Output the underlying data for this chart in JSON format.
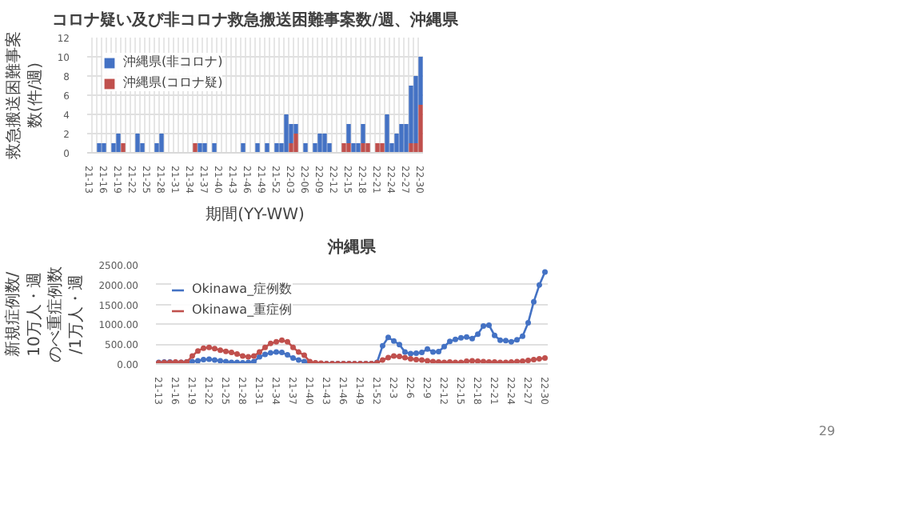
{
  "chart_data": [
    {
      "type": "bar",
      "title": "コロナ疑い及び非コロナ救急搬送困難事案数/週、沖縄県",
      "xlabel": "期間(YY-WW)",
      "ylabel": "救急搬送困難事案数(件/週)",
      "stacked": true,
      "categories": [
        "21-13",
        null,
        null,
        "21-16",
        null,
        null,
        "21-19",
        null,
        null,
        "21-22",
        null,
        null,
        "21-25",
        null,
        null,
        "21-28",
        null,
        null,
        "21-31",
        null,
        null,
        "21-34",
        null,
        null,
        "21-37",
        null,
        null,
        "21-40",
        null,
        null,
        "21-43",
        null,
        null,
        "21-46",
        null,
        null,
        "21-49",
        null,
        null,
        "21-52",
        null,
        null,
        "22-03",
        null,
        null,
        "22-06",
        null,
        null,
        "22-09",
        null,
        null,
        "22-12",
        null,
        null,
        "22-15",
        null,
        null,
        "22-18",
        null,
        null,
        "22-21",
        null,
        null,
        "22-24",
        null,
        null,
        "22-27",
        null,
        null,
        "22-30"
      ],
      "series": [
        {
          "name": "沖縄県(コロナ疑)",
          "color": "#c0504d",
          "values": [
            0,
            0,
            0,
            0,
            0,
            0,
            0,
            1,
            0,
            0,
            0,
            0,
            0,
            0,
            0,
            0,
            0,
            0,
            0,
            0,
            0,
            0,
            1,
            0,
            0,
            0,
            0,
            0,
            0,
            0,
            0,
            0,
            0,
            0,
            0,
            0,
            0,
            0,
            0,
            0,
            0,
            0,
            1,
            2,
            0,
            0,
            0,
            0,
            0,
            0,
            0,
            0,
            0,
            1,
            1,
            0,
            0,
            1,
            1,
            0,
            1,
            1,
            0,
            0,
            0,
            0,
            0,
            1,
            1,
            5
          ]
        },
        {
          "name": "沖縄県(非コロナ)",
          "color": "#4472c4",
          "values": [
            0,
            0,
            1,
            1,
            0,
            1,
            2,
            0,
            0,
            0,
            2,
            1,
            0,
            0,
            1,
            2,
            0,
            0,
            0,
            0,
            0,
            0,
            0,
            1,
            1,
            0,
            1,
            0,
            0,
            0,
            0,
            0,
            1,
            0,
            0,
            1,
            0,
            1,
            0,
            1,
            1,
            4,
            2,
            1,
            0,
            1,
            0,
            1,
            2,
            2,
            1,
            0,
            0,
            0,
            2,
            1,
            1,
            2,
            0,
            0,
            0,
            0,
            4,
            1,
            2,
            3,
            3,
            6,
            7,
            5
          ]
        }
      ],
      "ylim": [
        0,
        12
      ],
      "yticks": [
        0,
        2,
        4,
        6,
        8,
        10,
        12
      ],
      "grid": true,
      "legend": "top left"
    },
    {
      "type": "line",
      "title": "沖縄県",
      "ylabel": "新規症例数/10万人・週のべ重症例数/1万人・週",
      "marker": "circle",
      "categories": [
        "21-13",
        null,
        null,
        "21-16",
        null,
        null,
        "21-19",
        null,
        null,
        "21-22",
        null,
        null,
        "21-25",
        null,
        null,
        "21-28",
        null,
        null,
        "21-31",
        null,
        null,
        "21-34",
        null,
        null,
        "21-37",
        null,
        null,
        "21-40",
        null,
        null,
        "21-43",
        null,
        null,
        "21-46",
        null,
        null,
        "21-49",
        null,
        null,
        "21-52",
        null,
        null,
        "22-3",
        null,
        null,
        "22-6",
        null,
        null,
        "22-9",
        null,
        null,
        "22-12",
        null,
        null,
        "22-15",
        null,
        null,
        "22-18",
        null,
        null,
        "22-21",
        null,
        null,
        "22-24",
        null,
        null,
        "22-27",
        null,
        null,
        "22-30"
      ],
      "series": [
        {
          "name": "Okinawa_症例数",
          "color": "#4472c4",
          "values": [
            40,
            50,
            50,
            40,
            40,
            50,
            60,
            80,
            110,
            120,
            100,
            80,
            60,
            40,
            40,
            30,
            40,
            60,
            180,
            240,
            280,
            300,
            290,
            230,
            150,
            100,
            60,
            30,
            20,
            10,
            10,
            10,
            10,
            10,
            10,
            10,
            10,
            10,
            10,
            40,
            460,
            670,
            580,
            490,
            300,
            260,
            270,
            290,
            380,
            300,
            310,
            440,
            570,
            620,
            660,
            680,
            640,
            750,
            960,
            980,
            720,
            600,
            590,
            560,
            610,
            700,
            1040,
            1570,
            1990,
            2320
          ]
        },
        {
          "name": "Okinawa_重症例",
          "color": "#c0504d",
          "values": [
            30,
            40,
            40,
            50,
            40,
            50,
            200,
            330,
            400,
            420,
            390,
            350,
            320,
            290,
            250,
            200,
            180,
            200,
            300,
            420,
            520,
            560,
            600,
            560,
            420,
            300,
            220,
            60,
            30,
            20,
            10,
            10,
            10,
            10,
            10,
            10,
            10,
            10,
            10,
            30,
            100,
            160,
            200,
            190,
            160,
            130,
            110,
            100,
            80,
            60,
            50,
            40,
            50,
            40,
            40,
            70,
            80,
            70,
            60,
            50,
            50,
            40,
            40,
            50,
            60,
            70,
            90,
            110,
            130,
            150
          ]
        }
      ],
      "ylim": [
        0,
        2500
      ],
      "yticks": [
        {
          "value": 0,
          "label": "0.00"
        },
        {
          "value": 500,
          "label": "500.00"
        },
        {
          "value": 1000,
          "label": "1000.00"
        },
        {
          "value": 1500,
          "label": "1500.00"
        },
        {
          "value": 2000,
          "label": "2000.00"
        },
        {
          "value": 2500,
          "label": "2500.00"
        }
      ],
      "grid": "y",
      "legend": "top left",
      "annotations": [
        "29"
      ]
    }
  ]
}
